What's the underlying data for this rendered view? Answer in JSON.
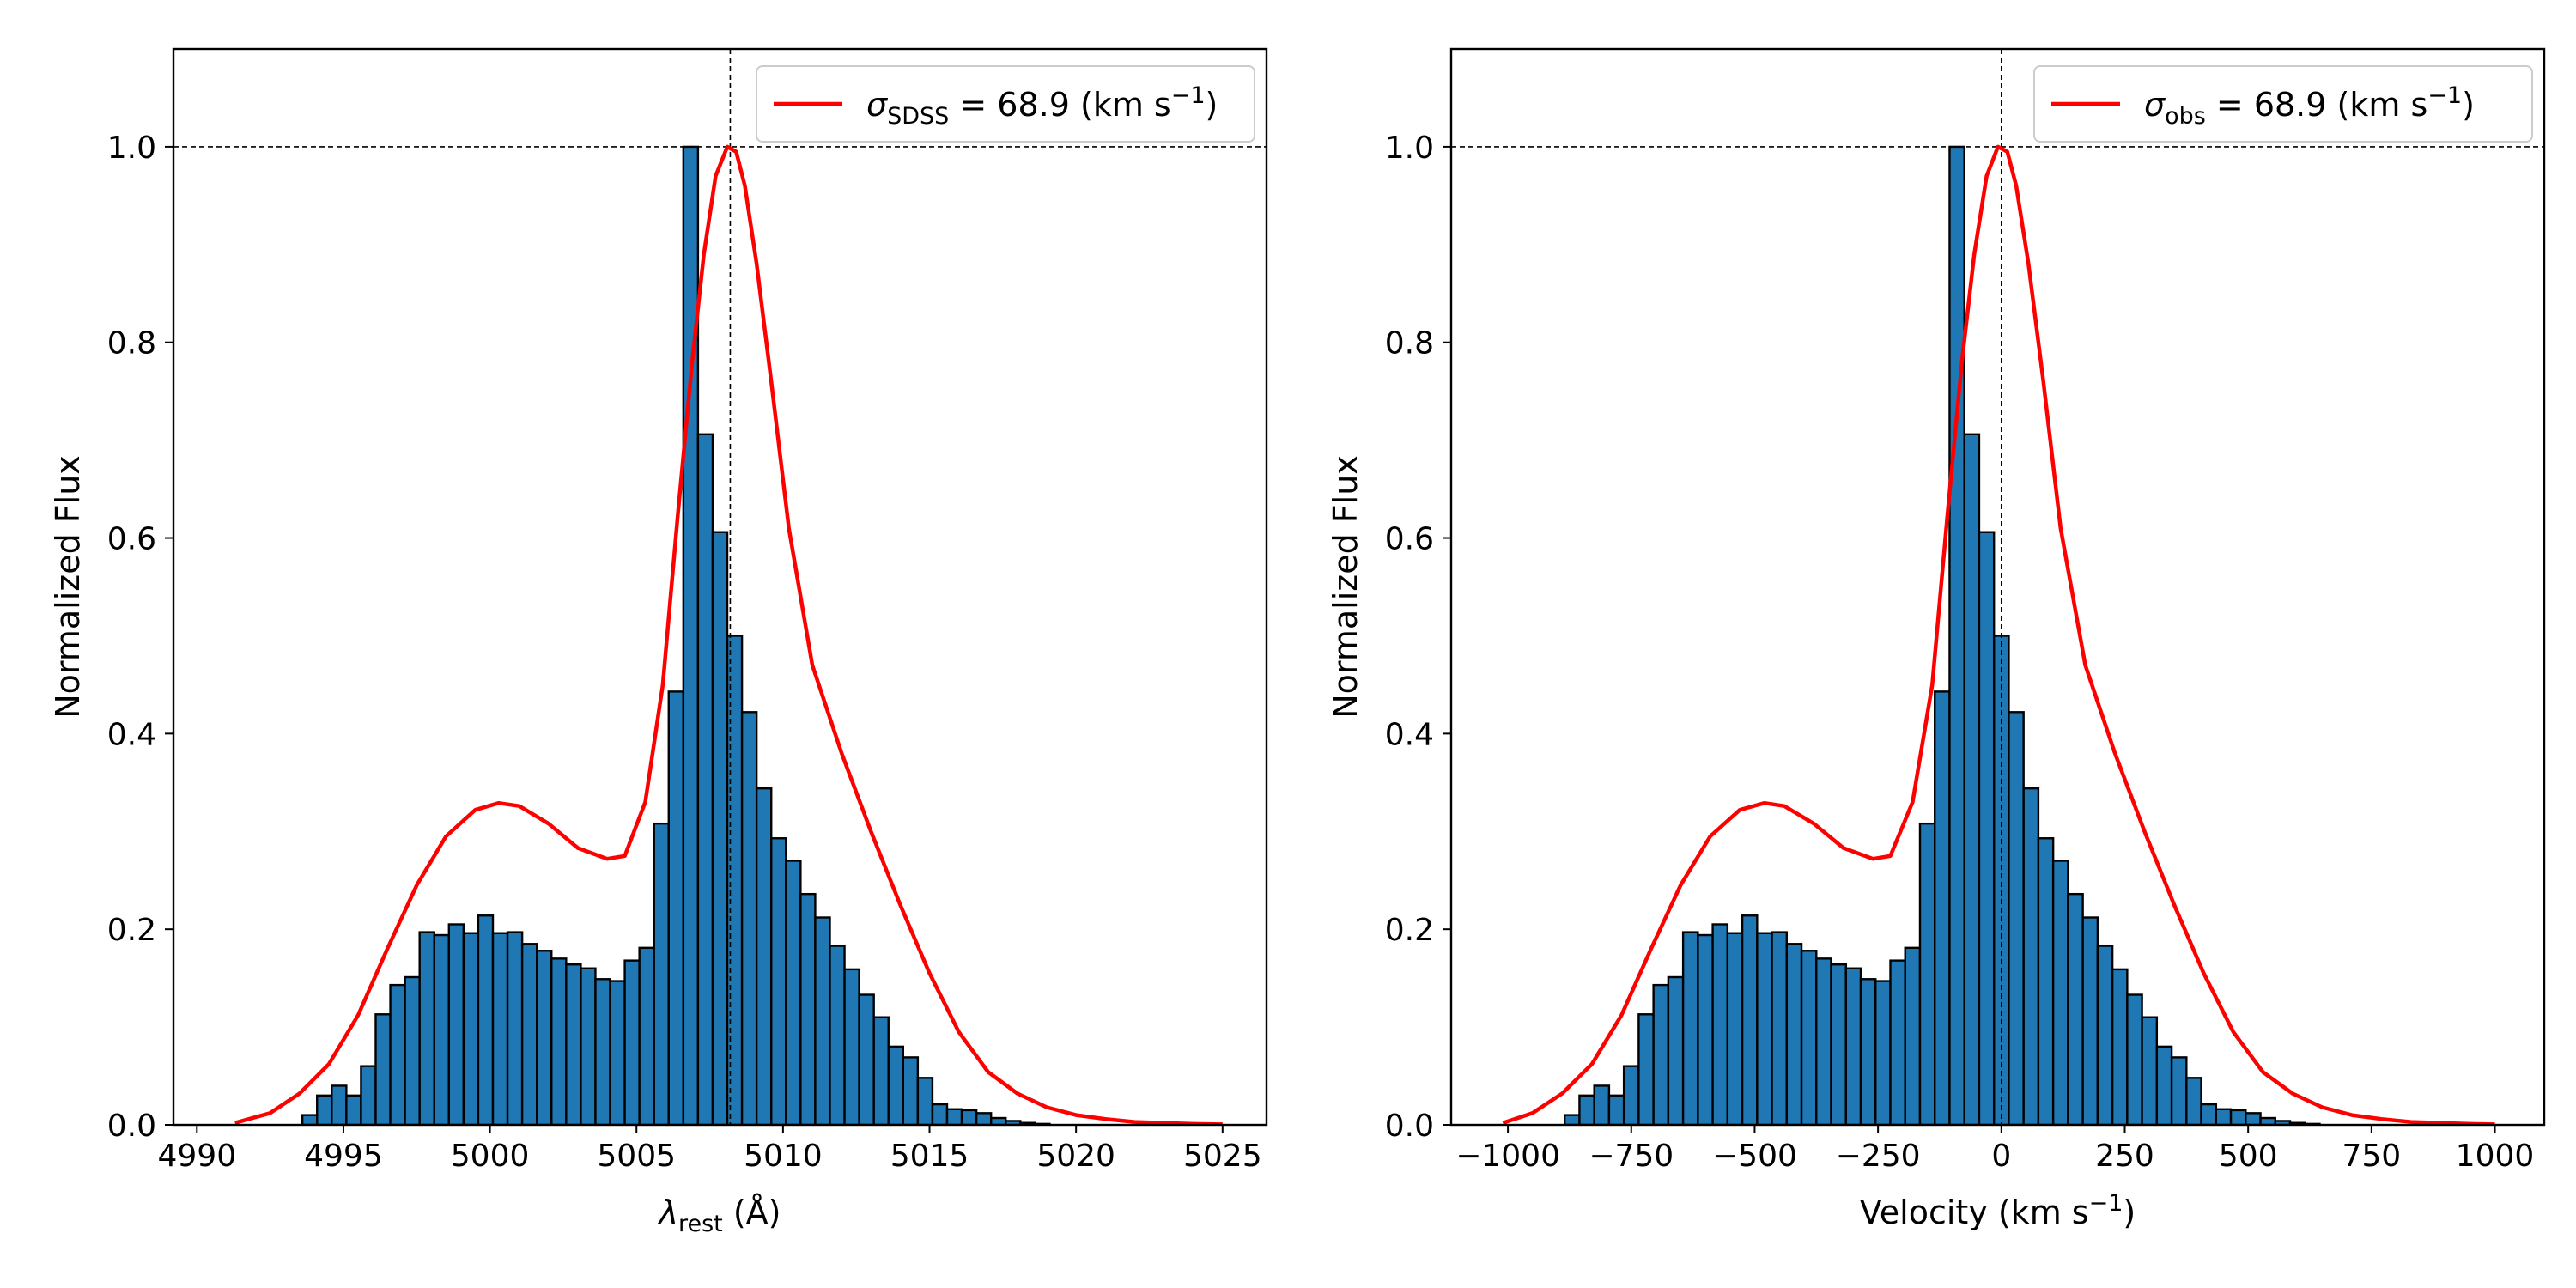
{
  "colors": {
    "bar_fill": "#1f77b4",
    "bar_edge": "#000000",
    "curve": "#ff0000",
    "reference_lines": "#000000"
  },
  "chart_data": [
    {
      "type": "bar",
      "panel": "left",
      "title": "",
      "xlabel": {
        "symbol": "λ",
        "sub": "rest",
        "unit": " (Å)"
      },
      "ylabel": "Normalized Flux",
      "xlim": [
        4989.2,
        5026.5
      ],
      "ylim": [
        0.0,
        1.1
      ],
      "xticks": [
        4990,
        4995,
        5000,
        5005,
        5010,
        5015,
        5020,
        5025
      ],
      "xtick_labels": [
        "4990",
        "4995",
        "5000",
        "5005",
        "5010",
        "5015",
        "5020",
        "5025"
      ],
      "yticks": [
        0.0,
        0.2,
        0.4,
        0.6,
        0.8,
        1.0
      ],
      "ytick_labels": [
        "0.0",
        "0.2",
        "0.4",
        "0.6",
        "0.8",
        "1.0"
      ],
      "bin_start": 4993.6,
      "bin_width": 0.5,
      "values": [
        0.01,
        0.03,
        0.04,
        0.03,
        0.06,
        0.113,
        0.143,
        0.151,
        0.197,
        0.194,
        0.205,
        0.196,
        0.214,
        0.196,
        0.197,
        0.185,
        0.178,
        0.17,
        0.164,
        0.16,
        0.149,
        0.147,
        0.168,
        0.181,
        0.308,
        0.443,
        1.0,
        0.706,
        0.606,
        0.5,
        0.422,
        0.344,
        0.293,
        0.27,
        0.236,
        0.212,
        0.183,
        0.159,
        0.133,
        0.11,
        0.08,
        0.069,
        0.048,
        0.021,
        0.016,
        0.015,
        0.012,
        0.007,
        0.004,
        0.002,
        0.001
      ],
      "reference_lines": {
        "vertical_x": 5008.2,
        "horizontal_y": 1.0
      },
      "curve": {
        "name": {
          "symbol": "σ",
          "sub": "SDSS",
          "text": " = 68.9 (km s",
          "sup": "−1",
          "close": ")"
        },
        "x": [
          4991.3,
          4992.5,
          4993.5,
          4994.5,
          4995.5,
          4996.5,
          4997.5,
          4998.5,
          4999.5,
          5000.3,
          5001.0,
          5002.0,
          5003.0,
          5004.0,
          5004.6,
          5005.3,
          5005.9,
          5006.4,
          5006.9,
          5007.3,
          5007.7,
          5008.1,
          5008.4,
          5008.7,
          5009.1,
          5009.6,
          5010.2,
          5011.0,
          5012.0,
          5013.0,
          5014.0,
          5015.0,
          5016.0,
          5017.0,
          5018.0,
          5019.0,
          5020.0,
          5021.0,
          5022.0,
          5023.0,
          5024.0,
          5025.0
        ],
        "y": [
          0.002,
          0.012,
          0.032,
          0.062,
          0.112,
          0.18,
          0.245,
          0.295,
          0.322,
          0.329,
          0.326,
          0.308,
          0.283,
          0.272,
          0.275,
          0.33,
          0.45,
          0.62,
          0.78,
          0.89,
          0.97,
          1.0,
          0.995,
          0.96,
          0.88,
          0.76,
          0.61,
          0.47,
          0.38,
          0.3,
          0.225,
          0.155,
          0.095,
          0.054,
          0.032,
          0.018,
          0.01,
          0.006,
          0.003,
          0.002,
          0.001,
          0.0005
        ]
      }
    },
    {
      "type": "bar",
      "panel": "right",
      "title": "",
      "xlabel": {
        "text": "Velocity (km s",
        "sup": "−1",
        "close": ")"
      },
      "ylabel": "Normalized Flux",
      "xlim": [
        -1115,
        1100
      ],
      "ylim": [
        0.0,
        1.1
      ],
      "xticks": [
        -1000,
        -750,
        -500,
        -250,
        0,
        250,
        500,
        750,
        1000
      ],
      "xtick_labels": [
        "−1000",
        "−750",
        "−500",
        "−250",
        "0",
        "250",
        "500",
        "750",
        "1000"
      ],
      "yticks": [
        0.0,
        0.2,
        0.4,
        0.6,
        0.8,
        1.0
      ],
      "ytick_labels": [
        "0.0",
        "0.2",
        "0.4",
        "0.6",
        "0.8",
        "1.0"
      ],
      "bin_start": -885,
      "bin_width": 30,
      "values": [
        0.01,
        0.03,
        0.04,
        0.03,
        0.06,
        0.113,
        0.143,
        0.151,
        0.197,
        0.194,
        0.205,
        0.196,
        0.214,
        0.196,
        0.197,
        0.185,
        0.178,
        0.17,
        0.164,
        0.16,
        0.149,
        0.147,
        0.168,
        0.181,
        0.308,
        0.443,
        1.0,
        0.706,
        0.606,
        0.5,
        0.422,
        0.344,
        0.293,
        0.27,
        0.236,
        0.212,
        0.183,
        0.159,
        0.133,
        0.11,
        0.08,
        0.069,
        0.048,
        0.021,
        0.016,
        0.015,
        0.012,
        0.007,
        0.004,
        0.002,
        0.001
      ],
      "reference_lines": {
        "vertical_x": 0,
        "horizontal_y": 1.0
      },
      "curve": {
        "name": {
          "symbol": "σ",
          "sub": "obs",
          "text": " = 68.9 (km s",
          "sup": "−1",
          "close": ")"
        },
        "x": [
          -1010,
          -950,
          -890,
          -830,
          -770,
          -710,
          -650,
          -590,
          -530,
          -480,
          -440,
          -380,
          -320,
          -260,
          -225,
          -180,
          -140,
          -110,
          -80,
          -55,
          -30,
          -7,
          12,
          30,
          55,
          85,
          120,
          170,
          230,
          290,
          350,
          410,
          470,
          530,
          590,
          650,
          710,
          770,
          830,
          890,
          950,
          1000
        ],
        "y": [
          0.002,
          0.012,
          0.032,
          0.062,
          0.112,
          0.18,
          0.245,
          0.295,
          0.322,
          0.329,
          0.326,
          0.308,
          0.283,
          0.272,
          0.275,
          0.33,
          0.45,
          0.62,
          0.78,
          0.89,
          0.97,
          1.0,
          0.995,
          0.96,
          0.88,
          0.76,
          0.61,
          0.47,
          0.38,
          0.3,
          0.225,
          0.155,
          0.095,
          0.054,
          0.032,
          0.018,
          0.01,
          0.006,
          0.003,
          0.002,
          0.001,
          0.0005
        ]
      }
    }
  ]
}
